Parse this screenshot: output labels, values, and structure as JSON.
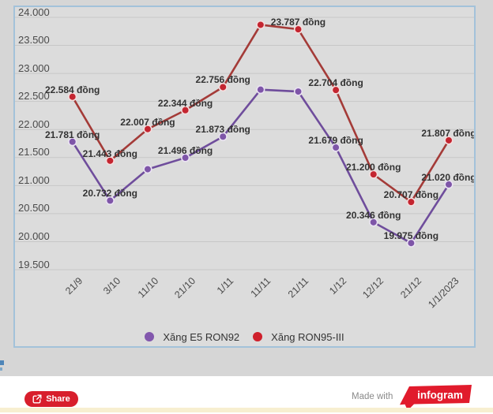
{
  "chart": {
    "plot_background": "#dcdcdc",
    "frame_border": "#a3c2da",
    "gridline": "#c7c7c7",
    "tick_color": "#4a4a4a",
    "data_label_color": "#333333"
  },
  "chart_data": {
    "type": "line",
    "title": "",
    "categories": [
      "21/9",
      "3/10",
      "11/10",
      "21/10",
      "1/11",
      "11/11",
      "21/11",
      "1/12",
      "12/12",
      "21/12",
      "1/1/2023"
    ],
    "series": [
      {
        "name": "Xăng E5 RON92",
        "line_color": "#6f4d9c",
        "point_color": "#7e55a8",
        "point_ring": "#eae3f2",
        "values": [
          21781,
          20732,
          21292,
          21496,
          21873,
          22711,
          22677,
          21679,
          20346,
          19975,
          21020
        ],
        "point_labels": [
          "21.781 đồng",
          "20.732 đồng",
          null,
          "21.496 đồng",
          "21.873 đồng",
          null,
          null,
          "21.679 đồng",
          "20.346 đồng",
          "19.975 đồng",
          "21.020 đồng"
        ]
      },
      {
        "name": "Xăng RON95-III",
        "line_color": "#a43b38",
        "point_color": "#c42530",
        "point_ring": "#f4dede",
        "values": [
          22584,
          21443,
          22007,
          22344,
          22756,
          23867,
          23787,
          22704,
          21200,
          20707,
          21807
        ],
        "point_labels": [
          "22.584 đồng",
          "21.443 đồng",
          "22.007 đồng",
          "22.344 đồng",
          "22.756 đồng",
          null,
          "23.787 đồng",
          "22.704 đồng",
          "21.200 đồng",
          "20.707 đồng",
          "21.807 đồng"
        ]
      }
    ],
    "unit": "đồng",
    "grid": true,
    "legend_position": "bottom",
    "x_axis": {
      "label_rotation": -45
    },
    "y_axis": {
      "min": 19500,
      "max": 24000,
      "tick_labels": [
        "24.000",
        "23.500",
        "23.000",
        "22.500",
        "22.000",
        "21.500",
        "21.000",
        "20.500",
        "20.000",
        "19.500"
      ],
      "tick_values": [
        24000,
        23500,
        23000,
        22500,
        22000,
        21500,
        21000,
        20500,
        20000,
        19500
      ]
    }
  },
  "legend": {
    "items": [
      {
        "label": "Xăng E5 RON92",
        "color": "#8257ad"
      },
      {
        "label": "Xăng RON95-III",
        "color": "#cf202c"
      }
    ]
  },
  "footer": {
    "share_label": "Share",
    "made_with": "Made with",
    "brand": "infogram"
  }
}
